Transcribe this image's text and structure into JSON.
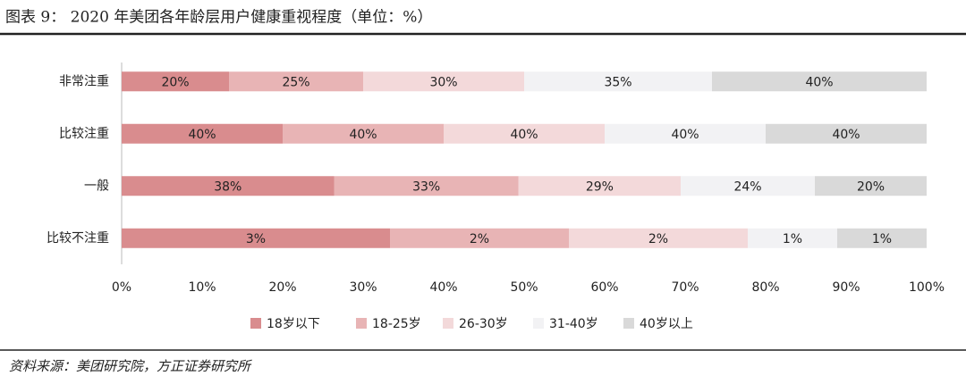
{
  "chart_data": {
    "type": "bar",
    "orientation": "horizontal",
    "stacking": "percent",
    "title": "图表 9： 2020 年美团各年龄层用户健康重视程度（单位：%）",
    "source": "资料来源：美团研究院，方正证券研究所",
    "categories": [
      "非常注重",
      "比较注重",
      "一般",
      "比较不注重"
    ],
    "series": [
      {
        "name": "18岁以下",
        "color": "#d98c8e",
        "values": [
          20,
          40,
          38,
          3
        ],
        "value_labels": [
          "20%",
          "40%",
          "38%",
          "3%"
        ]
      },
      {
        "name": "18-25岁",
        "color": "#e8b4b5",
        "values": [
          25,
          40,
          33,
          2
        ],
        "value_labels": [
          "25%",
          "40%",
          "33%",
          "2%"
        ]
      },
      {
        "name": "26-30岁",
        "color": "#f3d9da",
        "values": [
          30,
          40,
          29,
          2
        ],
        "value_labels": [
          "30%",
          "40%",
          "29%",
          "2%"
        ]
      },
      {
        "name": "31-40岁",
        "color": "#f2f2f4",
        "values": [
          35,
          40,
          24,
          1
        ],
        "value_labels": [
          "35%",
          "40%",
          "24%",
          "1%"
        ]
      },
      {
        "name": "40岁以上",
        "color": "#d9d9d9",
        "values": [
          40,
          40,
          20,
          1
        ],
        "value_labels": [
          "40%",
          "40%",
          "20%",
          "1%"
        ]
      }
    ],
    "xlim": [
      0,
      100
    ],
    "xticks": [
      {
        "value": 0,
        "label": "0%"
      },
      {
        "value": 10,
        "label": "10%"
      },
      {
        "value": 20,
        "label": "20%"
      },
      {
        "value": 30,
        "label": "30%"
      },
      {
        "value": 40,
        "label": "40%"
      },
      {
        "value": 50,
        "label": "50%"
      },
      {
        "value": 60,
        "label": "60%"
      },
      {
        "value": 70,
        "label": "70%"
      },
      {
        "value": 80,
        "label": "80%"
      },
      {
        "value": 90,
        "label": "90%"
      },
      {
        "value": 100,
        "label": "100%"
      }
    ],
    "legend": "bottom",
    "grid": false
  }
}
